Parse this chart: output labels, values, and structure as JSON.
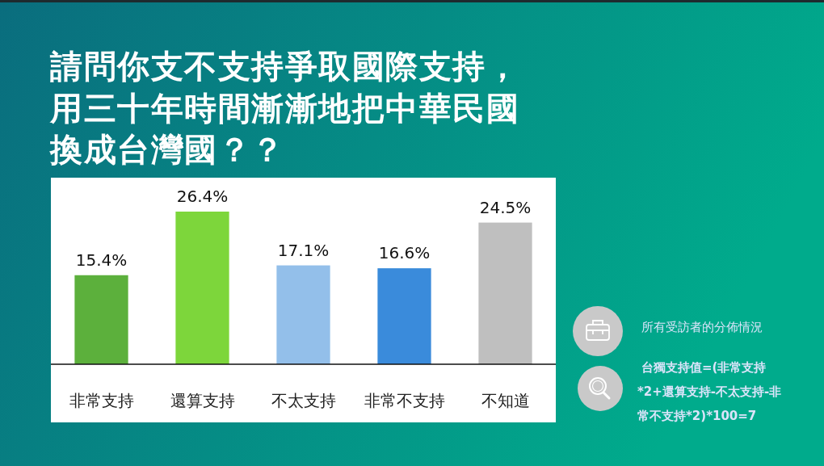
{
  "chart_data": {
    "type": "bar",
    "title": "請問你支不支持爭取國際支持，用三十年時間漸漸地把中華民國換成台灣國？？",
    "categories": [
      "非常支持",
      "還算支持",
      "不太支持",
      "非常不支持",
      "不知道"
    ],
    "values": [
      15.4,
      26.4,
      17.1,
      16.6,
      24.5
    ],
    "value_labels": [
      "15.4%",
      "26.4%",
      "17.1%",
      "16.6%",
      "24.5%"
    ],
    "colors": [
      "#5cb03c",
      "#7dd63b",
      "#93bfea",
      "#3a8bdb",
      "#bfbfbf"
    ],
    "annotations": [
      "所有受訪者的分佈情況",
      "台獨支持值=(非常支持*2+還算支持-不太支持-非常不支持*2)*100=7"
    ]
  }
}
